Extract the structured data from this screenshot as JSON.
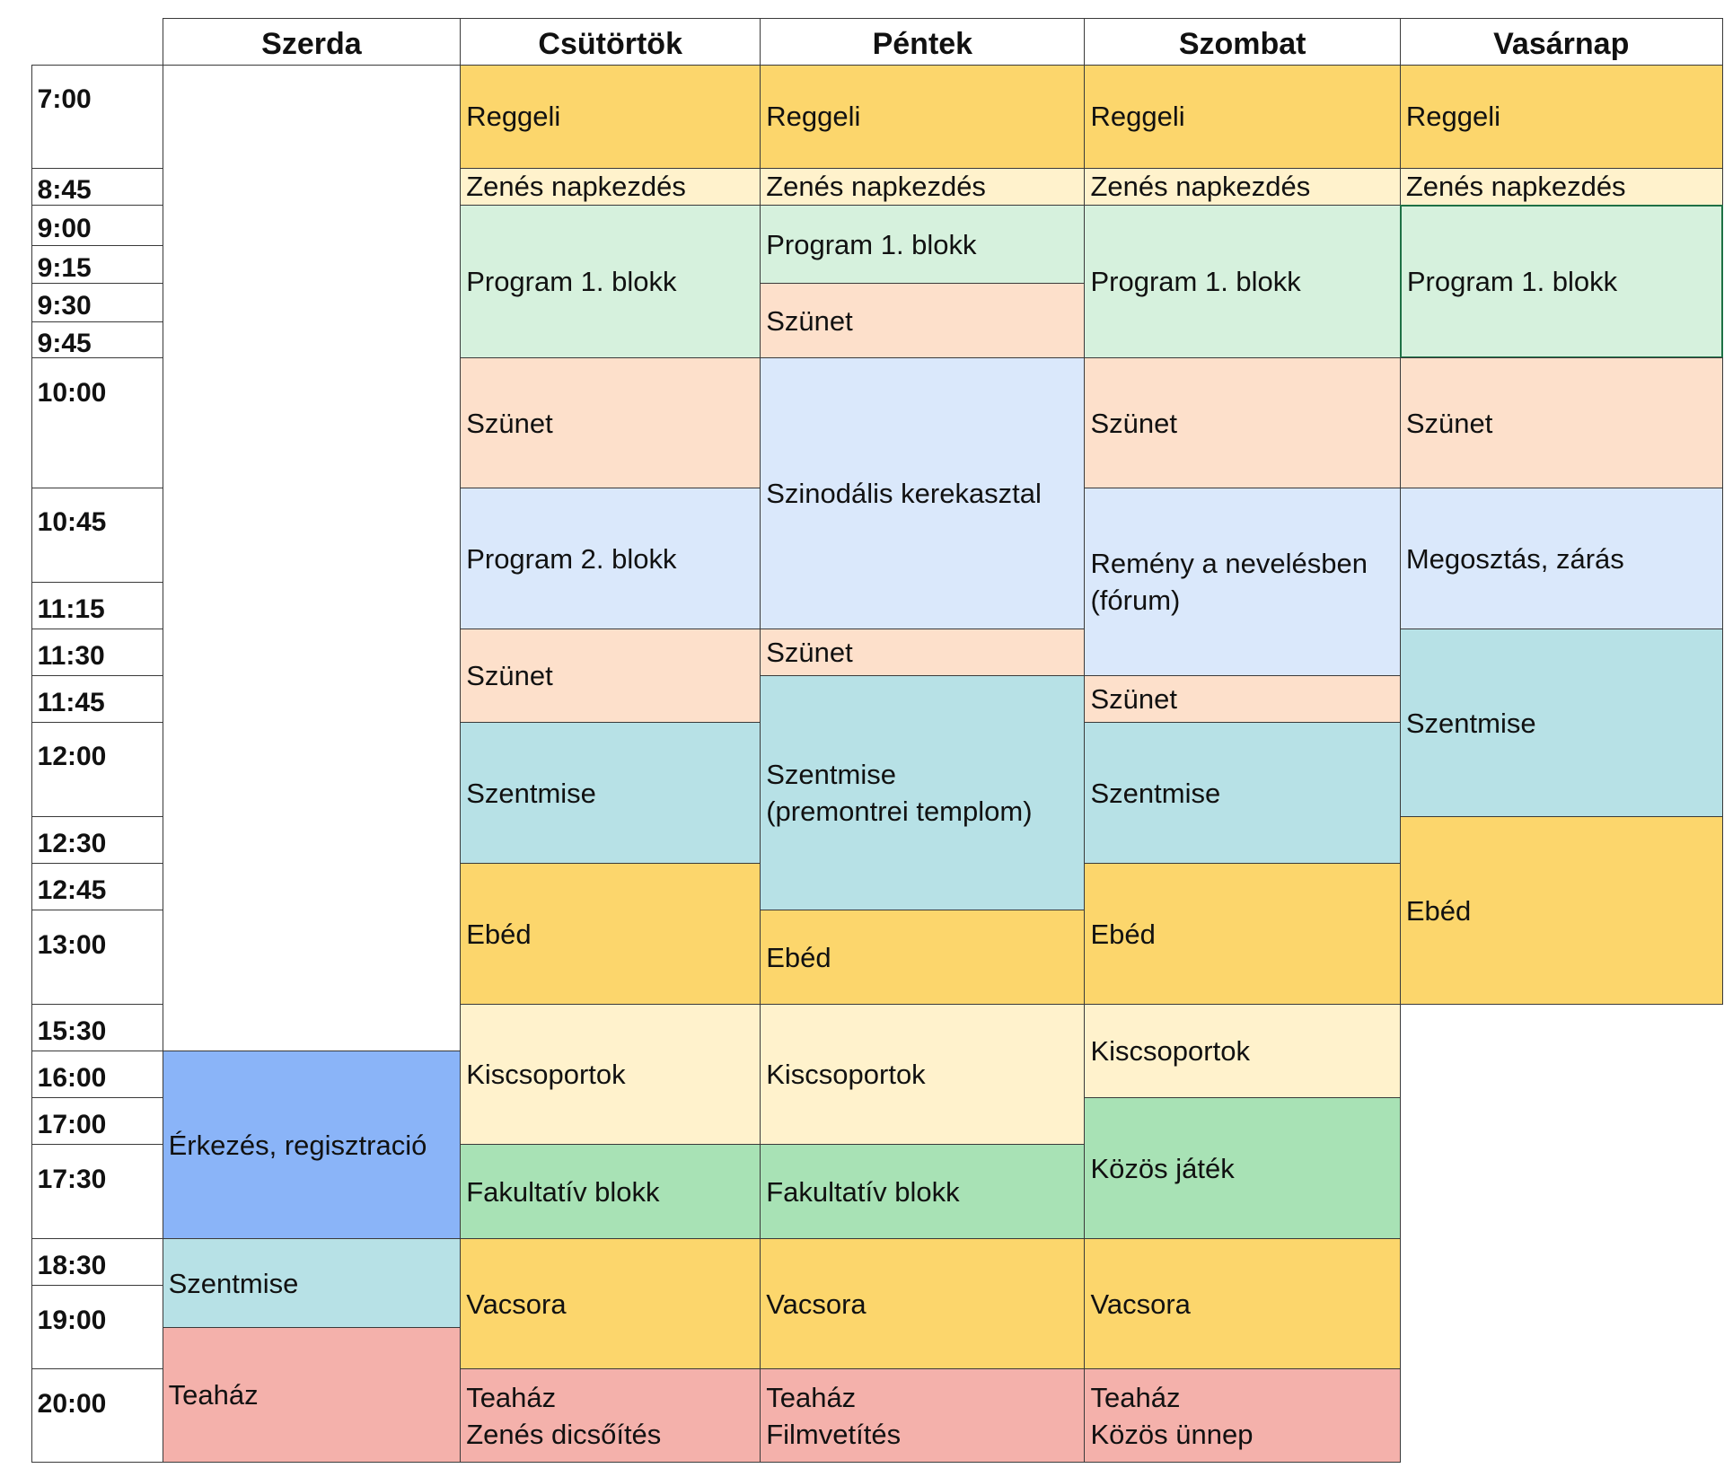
{
  "header": {
    "days": [
      "Szerda",
      "Csütörtök",
      "Péntek",
      "Szombat",
      "Vasárnap"
    ]
  },
  "times": [
    "7:00",
    "8:45",
    "9:00",
    "9:15",
    "9:30",
    "9:45",
    "10:00",
    "10:45",
    "11:15",
    "11:30",
    "11:45",
    "12:00",
    "12:30",
    "12:45",
    "13:00",
    "15:30",
    "16:00",
    "17:00",
    "17:30",
    "18:30",
    "19:00",
    "20:00"
  ],
  "days": [
    {
      "events": [
        {
          "lines": [],
          "color": "#ffffff"
        },
        {
          "lines": [
            "Érkezés, regisztració"
          ],
          "color": "#8ab4f8"
        },
        {
          "lines": [
            "Szentmise"
          ],
          "color": "#b7e1e6"
        },
        {
          "lines": [
            "Teaház"
          ],
          "color": "#f4b1ab"
        }
      ]
    },
    {
      "events": [
        {
          "lines": [
            "Reggeli"
          ],
          "color": "#fcd66c"
        },
        {
          "lines": [
            "Zenés napkezdés"
          ],
          "color": "#fff2cc"
        },
        {
          "lines": [
            "Program 1. blokk"
          ],
          "color": "#d6f1dd"
        },
        {
          "lines": [
            "Szünet"
          ],
          "color": "#fde0cb"
        },
        {
          "lines": [
            "Program 2. blokk"
          ],
          "color": "#dae8fb"
        },
        {
          "lines": [
            "Szünet"
          ],
          "color": "#fde0cb"
        },
        {
          "lines": [
            "Szentmise"
          ],
          "color": "#b7e1e6"
        },
        {
          "lines": [
            "Ebéd"
          ],
          "color": "#fcd66c"
        },
        {
          "lines": [
            "Kiscsoportok"
          ],
          "color": "#fff2cc"
        },
        {
          "lines": [
            "Fakultatív blokk"
          ],
          "color": "#a8e2b5"
        },
        {
          "lines": [
            "Vacsora"
          ],
          "color": "#fcd66c"
        },
        {
          "lines": [
            "Teaház",
            "Zenés dicsőítés"
          ],
          "color": "#f4b1ab"
        }
      ]
    },
    {
      "events": [
        {
          "lines": [
            "Reggeli"
          ],
          "color": "#fcd66c"
        },
        {
          "lines": [
            "Zenés napkezdés"
          ],
          "color": "#fff2cc"
        },
        {
          "lines": [
            "Program 1. blokk"
          ],
          "color": "#d6f1dd"
        },
        {
          "lines": [
            "Szünet"
          ],
          "color": "#fde0cb"
        },
        {
          "lines": [
            "Szinodális kerekasztal"
          ],
          "color": "#dae8fb"
        },
        {
          "lines": [
            "Szünet"
          ],
          "color": "#fde0cb"
        },
        {
          "lines": [
            "Szentmise",
            "(premontrei templom)"
          ],
          "color": "#b7e1e6"
        },
        {
          "lines": [
            "Ebéd"
          ],
          "color": "#fcd66c"
        },
        {
          "lines": [
            "Kiscsoportok"
          ],
          "color": "#fff2cc"
        },
        {
          "lines": [
            "Fakultatív blokk"
          ],
          "color": "#a8e2b5"
        },
        {
          "lines": [
            "Vacsora"
          ],
          "color": "#fcd66c"
        },
        {
          "lines": [
            "Teaház",
            "Filmvetítés"
          ],
          "color": "#f4b1ab"
        }
      ]
    },
    {
      "events": [
        {
          "lines": [
            "Reggeli"
          ],
          "color": "#fcd66c"
        },
        {
          "lines": [
            "Zenés napkezdés"
          ],
          "color": "#fff2cc"
        },
        {
          "lines": [
            "Program 1. blokk"
          ],
          "color": "#d6f1dd"
        },
        {
          "lines": [
            "Szünet"
          ],
          "color": "#fde0cb"
        },
        {
          "lines": [
            "Remény a nevelésben",
            "(fórum)"
          ],
          "color": "#dae8fb"
        },
        {
          "lines": [
            "Szünet"
          ],
          "color": "#fde0cb"
        },
        {
          "lines": [
            "Szentmise"
          ],
          "color": "#b7e1e6"
        },
        {
          "lines": [
            "Ebéd"
          ],
          "color": "#fcd66c"
        },
        {
          "lines": [
            "Kiscsoportok"
          ],
          "color": "#fff2cc"
        },
        {
          "lines": [
            "Közös játék"
          ],
          "color": "#a8e2b5"
        },
        {
          "lines": [
            "Vacsora"
          ],
          "color": "#fcd66c"
        },
        {
          "lines": [
            "Teaház",
            "Közös ünnep"
          ],
          "color": "#f4b1ab"
        }
      ]
    },
    {
      "events": [
        {
          "lines": [
            "Reggeli"
          ],
          "color": "#fcd66c"
        },
        {
          "lines": [
            "Zenés napkezdés"
          ],
          "color": "#fff2cc"
        },
        {
          "lines": [
            "Program 1. blokk"
          ],
          "color": "#d6f1dd"
        },
        {
          "lines": [
            "Szünet"
          ],
          "color": "#fde0cb"
        },
        {
          "lines": [
            "Megosztás, zárás"
          ],
          "color": "#dae8fb"
        },
        {
          "lines": [
            "Szentmise"
          ],
          "color": "#b7e1e6"
        },
        {
          "lines": [
            "Ebéd"
          ],
          "color": "#fcd66c"
        }
      ]
    }
  ]
}
